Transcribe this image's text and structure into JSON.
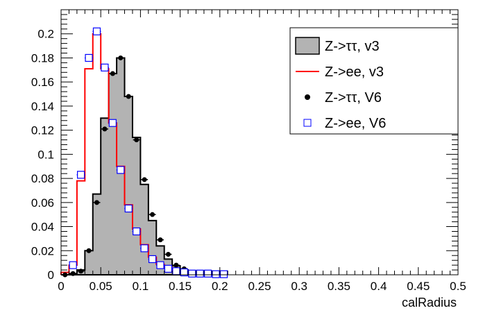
{
  "chart_data": {
    "type": "bar",
    "xlabel": "calRadius",
    "ylabel": "",
    "xlim": [
      0,
      0.5
    ],
    "ylim": [
      0,
      0.22
    ],
    "xticks": [
      "0",
      "0.05",
      "0.1",
      "0.15",
      "0.2",
      "0.25",
      "0.3",
      "0.35",
      "0.4",
      "0.45",
      "0.5"
    ],
    "yticks": [
      "0",
      "0.02",
      "0.04",
      "0.06",
      "0.08",
      "0.1",
      "0.12",
      "0.14",
      "0.16",
      "0.18",
      "0.2"
    ],
    "bin_edges_start": 0,
    "bin_width": 0.01,
    "legend_position": "top-right",
    "grid": false,
    "series": [
      {
        "name": "Z->ττ, v3",
        "style": "filled-hist",
        "color": "#b3b3b3",
        "edge": "#000000",
        "values": [
          0,
          0.001,
          0.004,
          0.02,
          0.067,
          0.13,
          0.167,
          0.18,
          0.148,
          0.114,
          0.075,
          0.045,
          0.024,
          0.013,
          0.0075,
          0.004,
          0.002,
          0.0015,
          0.001,
          0.0005
        ]
      },
      {
        "name": "Z->ee, v3",
        "style": "line-hist",
        "color": "#ff0000",
        "values": [
          0.002,
          0.008,
          0.078,
          0.171,
          0.2,
          0.171,
          0.126,
          0.09,
          0.058,
          0.038,
          0.025,
          0.0146,
          0.0088,
          0.006,
          0.004,
          0.002,
          0.0015,
          0.001,
          0.0005,
          0.0005
        ]
      },
      {
        "name": "Z->ττ, V6",
        "style": "dots",
        "color": "#000000",
        "values": [
          0,
          0.001,
          0.003,
          0.02,
          0.06,
          0.121,
          0.167,
          0.18,
          0.148,
          0.112,
          0.079,
          0.05,
          0.029,
          0.017,
          0.008,
          0.005,
          0.002,
          0.002,
          0.001,
          0.001
        ]
      },
      {
        "name": "Z->ee, V6",
        "style": "open-squares",
        "color": "#0000ff",
        "values": [
          null,
          0.008,
          0.083,
          0.18,
          0.202,
          0.172,
          0.126,
          0.087,
          0.055,
          0.036,
          0.022,
          0.013,
          0.008,
          0.005,
          0.003,
          0.002,
          0.001,
          0.001,
          0.001,
          0.0005,
          0.0005
        ]
      }
    ]
  }
}
